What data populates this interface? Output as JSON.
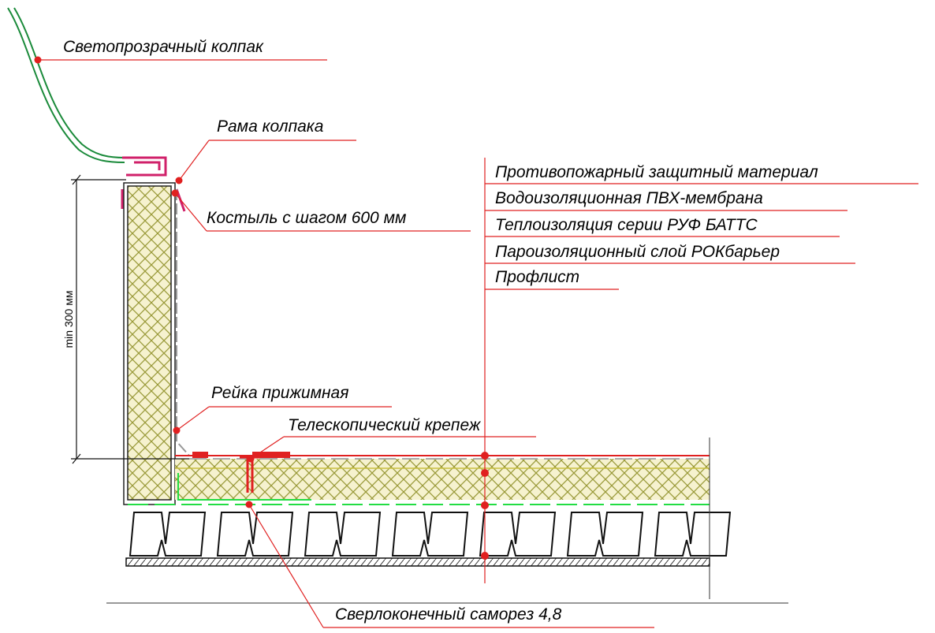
{
  "labels": [
    "Светопрозрачный колпак",
    "Рама колпака",
    "Костыль с шагом 600 мм",
    "Противопожарный защитный материал",
    "Водоизоляционная ПВХ-мембрана",
    "Теплоизоляция серии РУФ БАТТС",
    "Пароизоляционный слой РОКбарьер",
    "Профлист",
    "Рейка прижимная",
    "Телескопический крепеж",
    "Сверлоконечный саморез 4,8"
  ],
  "dimension": "min 300 мм"
}
